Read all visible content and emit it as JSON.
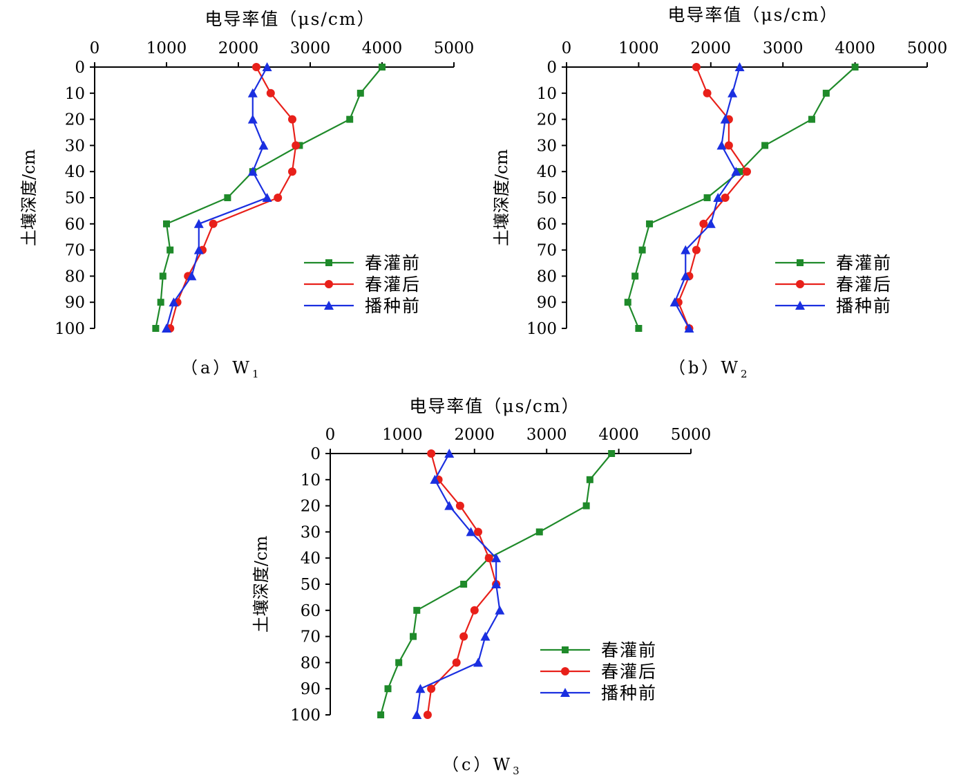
{
  "chart_data": [
    {
      "type": "line",
      "panel": "a",
      "title": "电导率值（μs/cm）",
      "ylabel": "土壤深度/cm",
      "caption": {
        "prefix": "（a）W",
        "sub": "1"
      },
      "xlim": [
        0,
        5000
      ],
      "ylim": [
        0,
        100
      ],
      "x_ticks": [
        "0",
        "1000",
        "2000",
        "3000",
        "4000",
        "5000"
      ],
      "y_ticks": [
        "0",
        "10",
        "20",
        "30",
        "40",
        "50",
        "60",
        "70",
        "80",
        "90",
        "100"
      ],
      "depths": [
        0,
        10,
        20,
        30,
        40,
        50,
        60,
        70,
        80,
        90,
        100
      ],
      "series": [
        {
          "name": "春灌前",
          "color": "#1f8a2a",
          "marker": "square",
          "values": [
            4000,
            3700,
            3550,
            2850,
            2200,
            1850,
            1000,
            1050,
            950,
            920,
            850
          ]
        },
        {
          "name": "春灌后",
          "color": "#e8201a",
          "marker": "circle",
          "values": [
            2250,
            2450,
            2750,
            2800,
            2750,
            2550,
            1650,
            1500,
            1300,
            1150,
            1050
          ]
        },
        {
          "name": "播种前",
          "color": "#1a2fe0",
          "marker": "triangle",
          "values": [
            2400,
            2200,
            2200,
            2350,
            2200,
            2400,
            1450,
            1450,
            1350,
            1100,
            1000
          ]
        }
      ]
    },
    {
      "type": "line",
      "panel": "b",
      "title": "电导率值（μs/cm）",
      "ylabel": "土壤深度/cm",
      "caption": {
        "prefix": "（b）W",
        "sub": "2"
      },
      "xlim": [
        0,
        5000
      ],
      "ylim": [
        0,
        100
      ],
      "x_ticks": [
        "0",
        "1000",
        "2000",
        "3000",
        "4000",
        "5000"
      ],
      "y_ticks": [
        "0",
        "10",
        "20",
        "30",
        "40",
        "50",
        "60",
        "70",
        "80",
        "90",
        "100"
      ],
      "depths": [
        0,
        10,
        20,
        30,
        40,
        50,
        60,
        70,
        80,
        90,
        100
      ],
      "series": [
        {
          "name": "春灌前",
          "color": "#1f8a2a",
          "marker": "square",
          "values": [
            4000,
            3600,
            3400,
            2750,
            2400,
            1950,
            1150,
            1050,
            950,
            850,
            1000
          ]
        },
        {
          "name": "春灌后",
          "color": "#e8201a",
          "marker": "circle",
          "values": [
            1800,
            1950,
            2250,
            2250,
            2500,
            2200,
            1900,
            1800,
            1700,
            1550,
            1700
          ]
        },
        {
          "name": "播种前",
          "color": "#1a2fe0",
          "marker": "triangle",
          "values": [
            2400,
            2300,
            2200,
            2150,
            2350,
            2100,
            2000,
            1650,
            1650,
            1500,
            1700
          ]
        }
      ]
    },
    {
      "type": "line",
      "panel": "c",
      "title": "电导率值（μs/cm）",
      "ylabel": "土壤深度/cm",
      "caption": {
        "prefix": "（c）W",
        "sub": "3"
      },
      "xlim": [
        0,
        5000
      ],
      "ylim": [
        0,
        100
      ],
      "x_ticks": [
        "0",
        "1000",
        "2000",
        "3000",
        "4000",
        "5000"
      ],
      "y_ticks": [
        "0",
        "10",
        "20",
        "30",
        "40",
        "50",
        "60",
        "70",
        "80",
        "90",
        "100"
      ],
      "depths": [
        0,
        10,
        20,
        30,
        40,
        50,
        60,
        70,
        80,
        90,
        100
      ],
      "series": [
        {
          "name": "春灌前",
          "color": "#1f8a2a",
          "marker": "square",
          "values": [
            3900,
            3600,
            3550,
            2900,
            2200,
            1850,
            1200,
            1150,
            950,
            800,
            700
          ]
        },
        {
          "name": "春灌后",
          "color": "#e8201a",
          "marker": "circle",
          "values": [
            1400,
            1500,
            1800,
            2050,
            2200,
            2300,
            2000,
            1850,
            1750,
            1400,
            1350
          ]
        },
        {
          "name": "播种前",
          "color": "#1a2fe0",
          "marker": "triangle",
          "values": [
            1650,
            1450,
            1650,
            1950,
            2300,
            2300,
            2350,
            2150,
            2050,
            1250,
            1200
          ]
        }
      ]
    }
  ]
}
